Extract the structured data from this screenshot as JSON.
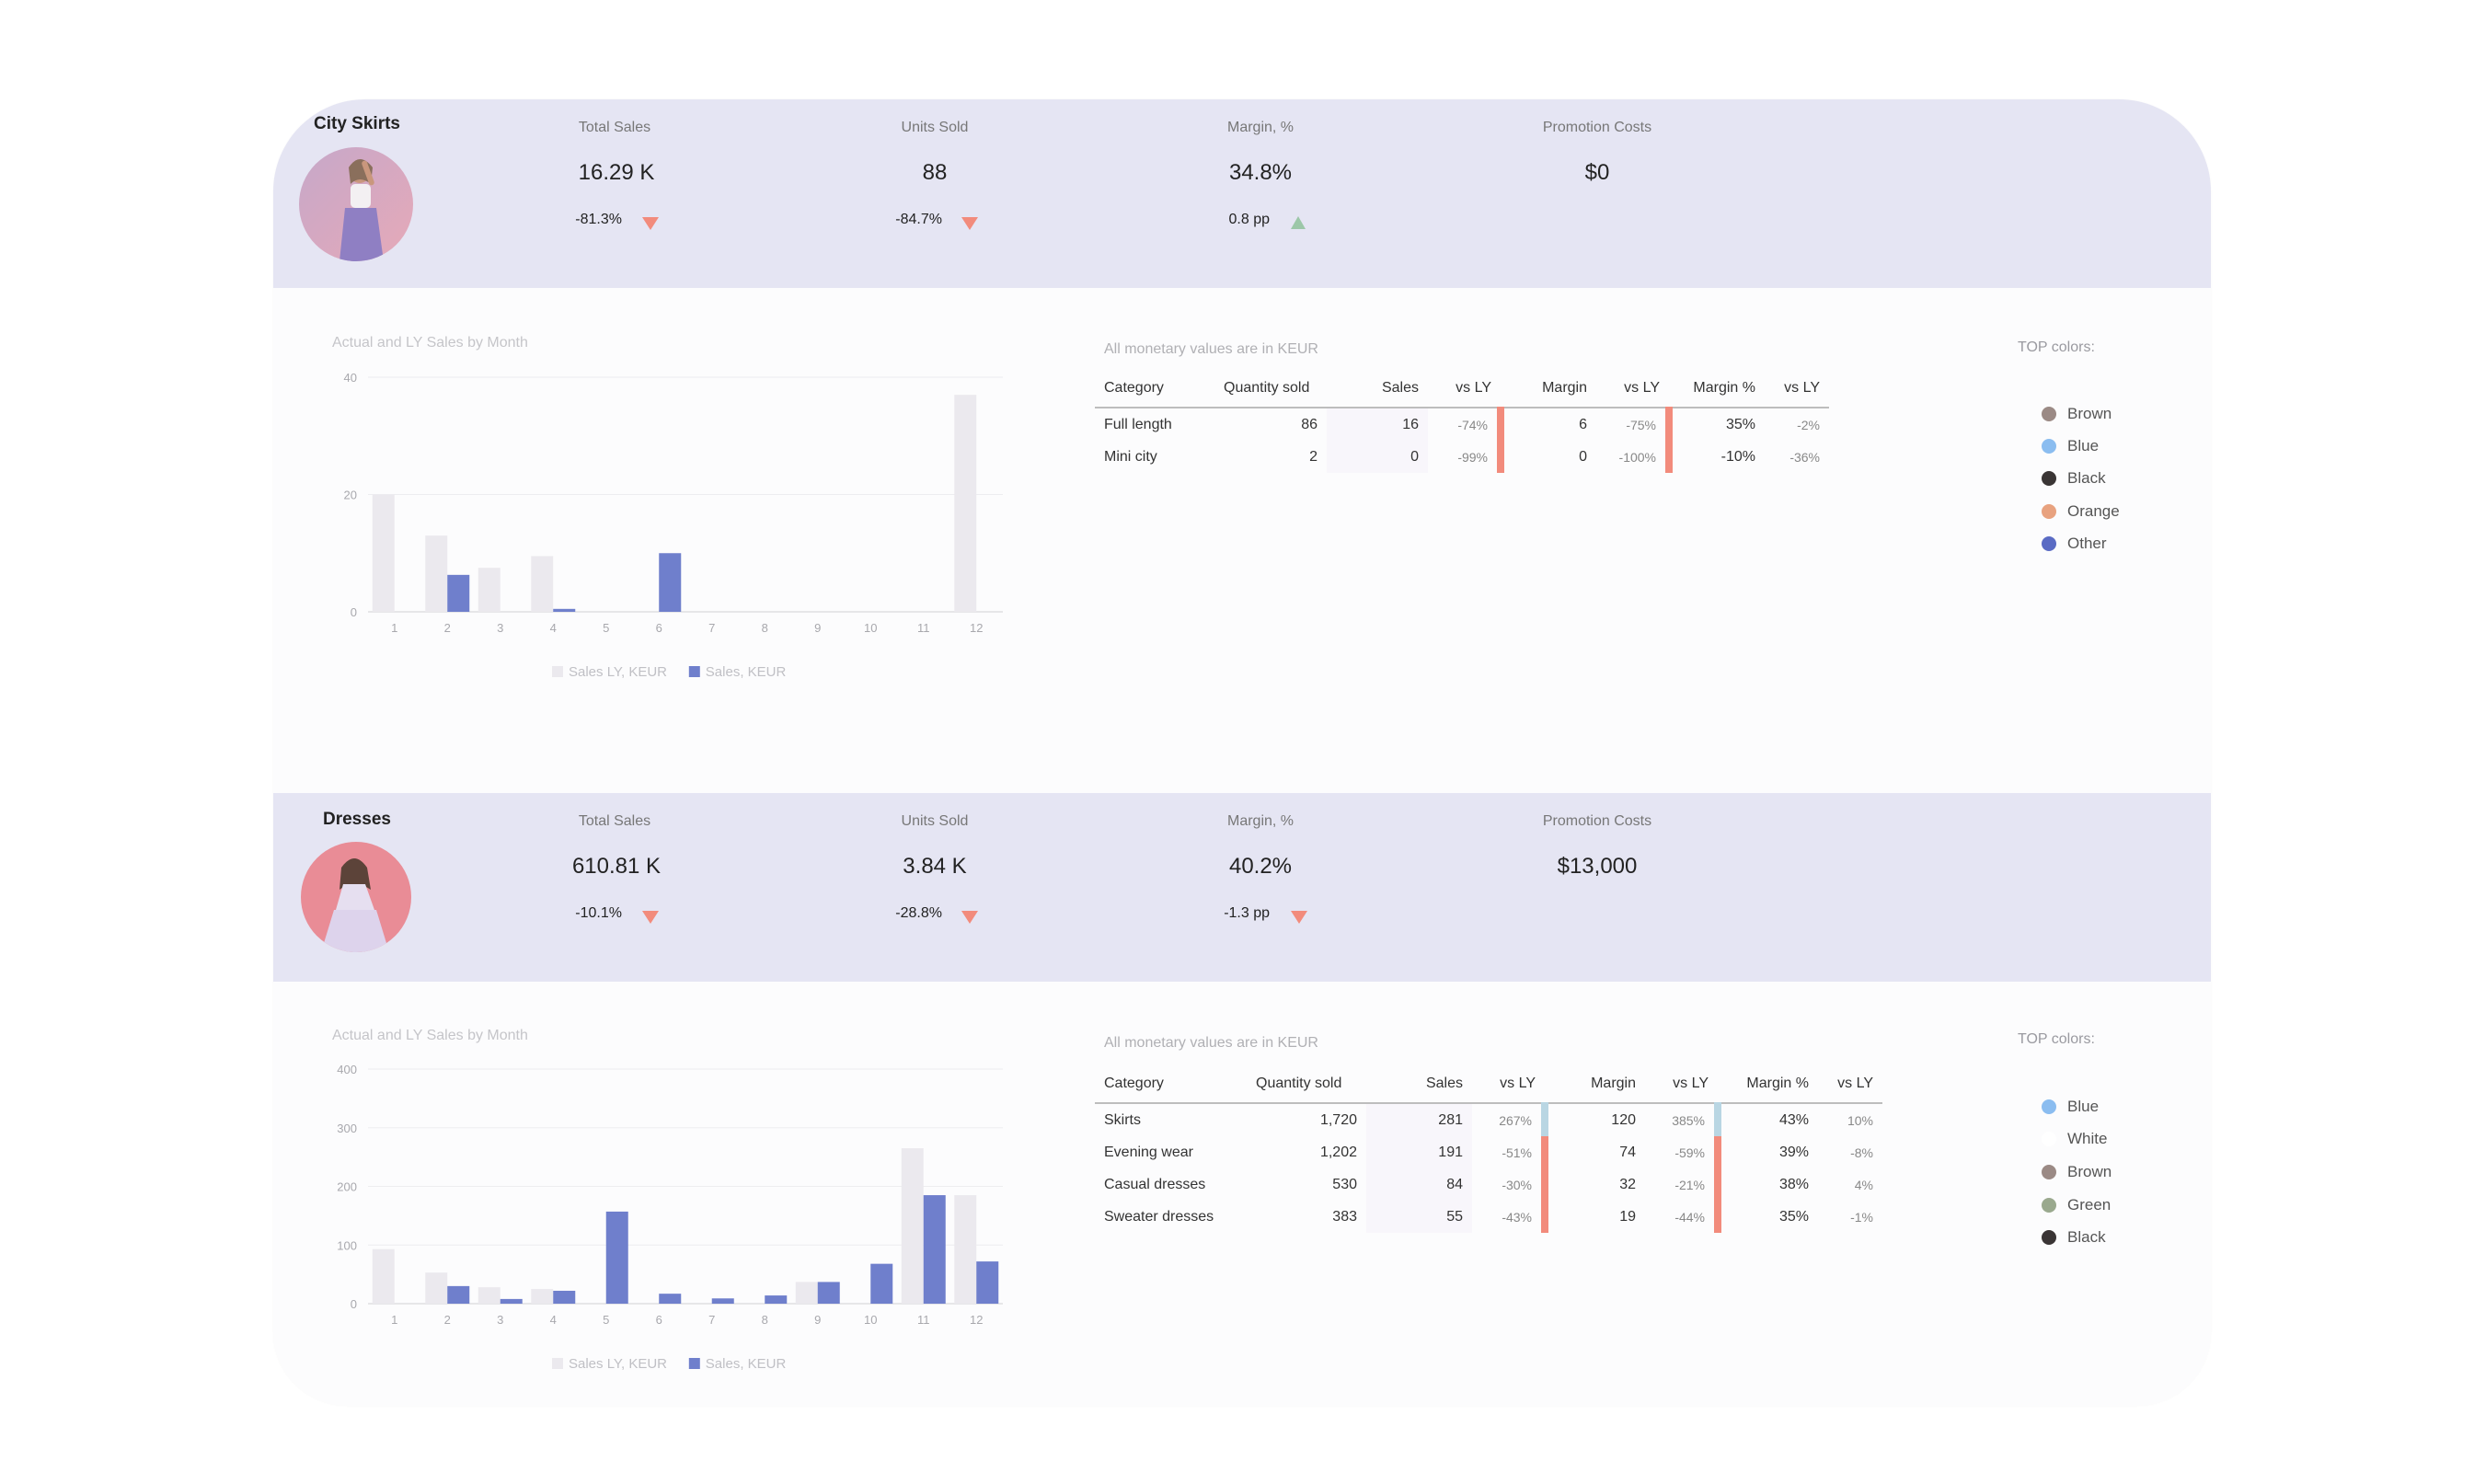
{
  "sections": [
    {
      "title": "City Skirts",
      "kpis": {
        "total_sales": {
          "label": "Total Sales",
          "value": "16.29 K",
          "delta": "-81.3%",
          "trend": "down"
        },
        "units_sold": {
          "label": "Units Sold",
          "value": "88",
          "delta": "-84.7%",
          "trend": "down"
        },
        "margin": {
          "label": "Margin, %",
          "value": "34.8%",
          "delta": "0.8 pp",
          "trend": "up"
        },
        "promotion": {
          "label": "Promotion Costs",
          "value": "$0"
        }
      },
      "chart_title": "Actual and LY Sales by Month",
      "note": "All monetary values are in KEUR",
      "table": {
        "headers": [
          "Category",
          "Quantity sold",
          "Sales",
          "vs LY",
          "Margin",
          "vs LY",
          "Margin %",
          "vs LY"
        ],
        "rows": [
          [
            "Full length",
            "86",
            "16",
            "-74%",
            "6",
            "-75%",
            "35%",
            "-2%"
          ],
          [
            "Mini city",
            "2",
            "0",
            "-99%",
            "0",
            "-100%",
            "-10%",
            "-36%"
          ]
        ]
      },
      "top_colors_title": "TOP colors:",
      "top_colors": [
        {
          "name": "Brown",
          "color": "#9b8a85"
        },
        {
          "name": "Blue",
          "color": "#8bbdf0"
        },
        {
          "name": "Black",
          "color": "#3a3535"
        },
        {
          "name": "Orange",
          "color": "#e8a27f"
        },
        {
          "name": "Other",
          "color": "#5a6bc4"
        }
      ]
    },
    {
      "title": "Dresses",
      "kpis": {
        "total_sales": {
          "label": "Total Sales",
          "value": "610.81 K",
          "delta": "-10.1%",
          "trend": "down"
        },
        "units_sold": {
          "label": "Units Sold",
          "value": "3.84 K",
          "delta": "-28.8%",
          "trend": "down"
        },
        "margin": {
          "label": "Margin, %",
          "value": "40.2%",
          "delta": "-1.3 pp",
          "trend": "down"
        },
        "promotion": {
          "label": "Promotion Costs",
          "value": "$13,000"
        }
      },
      "chart_title": "Actual and LY Sales by Month",
      "note": "All monetary values are in KEUR",
      "table": {
        "headers": [
          "Category",
          "Quantity sold",
          "Sales",
          "vs LY",
          "Margin",
          "vs LY",
          "Margin %",
          "vs LY"
        ],
        "rows": [
          [
            "Skirts",
            "1,720",
            "281",
            "267%",
            "120",
            "385%",
            "43%",
            "10%"
          ],
          [
            "Evening wear",
            "1,202",
            "191",
            "-51%",
            "74",
            "-59%",
            "39%",
            "-8%"
          ],
          [
            "Casual dresses",
            "530",
            "84",
            "-30%",
            "32",
            "-21%",
            "38%",
            "4%"
          ],
          [
            "Sweater dresses",
            "383",
            "55",
            "-43%",
            "19",
            "-44%",
            "35%",
            "-1%"
          ]
        ]
      },
      "top_colors_title": "TOP colors:",
      "top_colors": [
        {
          "name": "Blue",
          "color": "#8bbdf0"
        },
        {
          "name": "White",
          "color": "#ffffff"
        },
        {
          "name": "Brown",
          "color": "#9b8a85"
        },
        {
          "name": "Green",
          "color": "#9aa98e"
        },
        {
          "name": "Black",
          "color": "#3a3535"
        }
      ]
    }
  ],
  "chart_data": [
    {
      "type": "bar",
      "title": "Actual and LY Sales by Month",
      "categories": [
        "1",
        "2",
        "3",
        "4",
        "5",
        "6",
        "7",
        "8",
        "9",
        "10",
        "11",
        "12"
      ],
      "yticks": [
        "0",
        "20",
        "40"
      ],
      "ylim": [
        0,
        40
      ],
      "series": [
        {
          "name": "Sales LY, KEUR",
          "color": "#ebe9ee",
          "values": [
            20,
            13,
            7.5,
            9.5,
            0,
            0,
            0,
            0,
            0,
            0,
            0,
            37
          ]
        },
        {
          "name": "Sales, KEUR",
          "color": "#6f7fcc",
          "values": [
            0,
            6.3,
            0,
            0.5,
            0,
            10,
            0,
            0,
            0,
            0,
            0,
            0
          ]
        }
      ],
      "legend": "bottom"
    },
    {
      "type": "bar",
      "title": "Actual and LY Sales by Month",
      "categories": [
        "1",
        "2",
        "3",
        "4",
        "5",
        "6",
        "7",
        "8",
        "9",
        "10",
        "11",
        "12"
      ],
      "yticks": [
        "0",
        "100",
        "200",
        "300",
        "400"
      ],
      "ylim": [
        0,
        400
      ],
      "series": [
        {
          "name": "Sales LY, KEUR",
          "color": "#ebe9ee",
          "values": [
            93,
            53,
            28,
            25,
            0,
            0,
            0,
            0,
            37,
            0,
            265,
            185
          ]
        },
        {
          "name": "Sales, KEUR",
          "color": "#6f7fcc",
          "values": [
            0,
            30,
            8,
            22,
            157,
            17,
            9,
            14,
            37,
            68,
            185,
            72
          ]
        }
      ],
      "legend": "bottom"
    }
  ]
}
